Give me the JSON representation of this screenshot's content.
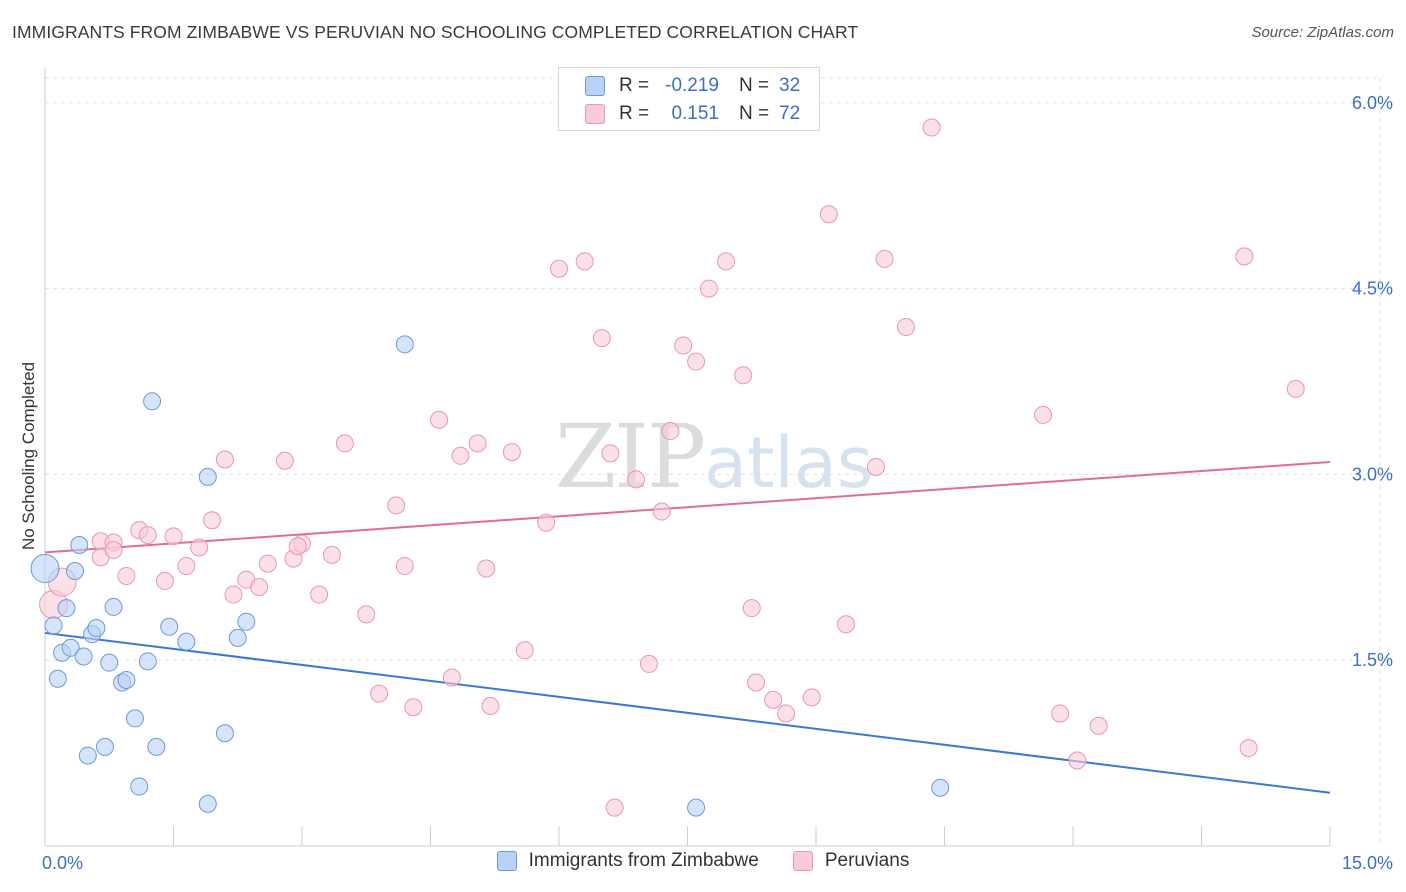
{
  "header": {
    "title": "IMMIGRANTS FROM ZIMBABWE VS PERUVIAN NO SCHOOLING COMPLETED CORRELATION CHART",
    "source": "Source: ZipAtlas.com"
  },
  "watermark": {
    "zip": "ZIP",
    "atlas": "atlas"
  },
  "legend_top": {
    "rows": [
      {
        "r_label": "R =",
        "r_value": "-0.219",
        "n_label": "N =",
        "n_value": "32"
      },
      {
        "r_label": "R =",
        "r_value": "0.151",
        "n_label": "N =",
        "n_value": "72"
      }
    ]
  },
  "legend_bottom": {
    "items": [
      {
        "label": "Immigrants from Zimbabwe"
      },
      {
        "label": "Peruvians"
      }
    ]
  },
  "colors": {
    "zimbabwe_fill": "#b9d2f5",
    "zimbabwe_stroke": "#6b9ad8",
    "zimbabwe_line": "#3b78d6",
    "peruvian_fill": "#f8cbd8",
    "peruvian_stroke": "#e897b0",
    "peruvian_line": "#e26c95",
    "tick_label": "#3b6fc4",
    "grid": "#e0e0e0"
  },
  "chart_data": {
    "type": "scatter",
    "title": "IMMIGRANTS FROM ZIMBABWE VS PERUVIAN NO SCHOOLING COMPLETED CORRELATION CHART",
    "xlabel": "",
    "ylabel": "No Schooling Completed",
    "xlim": [
      0,
      15
    ],
    "ylim": [
      0,
      6.2
    ],
    "x_tick_labels": [
      {
        "value": 0,
        "label": "0.0%"
      },
      {
        "value": 15,
        "label": "15.0%"
      }
    ],
    "y_tick_labels": [
      {
        "value": 1.5,
        "label": "1.5%"
      },
      {
        "value": 3.0,
        "label": "3.0%"
      },
      {
        "value": 4.5,
        "label": "4.5%"
      },
      {
        "value": 6.0,
        "label": "6.0%"
      }
    ],
    "grid": true,
    "legend_position": "top-center",
    "series": [
      {
        "name": "Immigrants from Zimbabwe",
        "trend": {
          "x": [
            0,
            15
          ],
          "y": [
            1.72,
            0.43
          ]
        },
        "points": [
          [
            0.0,
            2.24
          ],
          [
            0.1,
            1.78
          ],
          [
            0.15,
            1.35
          ],
          [
            0.2,
            1.56
          ],
          [
            0.25,
            1.92
          ],
          [
            0.3,
            1.6
          ],
          [
            0.35,
            2.22
          ],
          [
            0.4,
            2.43
          ],
          [
            0.45,
            1.53
          ],
          [
            0.5,
            0.73
          ],
          [
            0.55,
            1.71
          ],
          [
            0.6,
            1.76
          ],
          [
            0.7,
            0.8
          ],
          [
            0.75,
            1.48
          ],
          [
            0.8,
            1.93
          ],
          [
            0.9,
            1.32
          ],
          [
            0.95,
            1.34
          ],
          [
            1.05,
            1.03
          ],
          [
            1.1,
            0.48
          ],
          [
            1.2,
            1.49
          ],
          [
            1.3,
            0.8
          ],
          [
            1.25,
            3.59
          ],
          [
            1.45,
            1.77
          ],
          [
            1.65,
            1.65
          ],
          [
            1.9,
            0.34
          ],
          [
            1.9,
            2.98
          ],
          [
            2.1,
            0.91
          ],
          [
            2.25,
            1.68
          ],
          [
            2.35,
            1.81
          ],
          [
            4.2,
            4.05
          ],
          [
            7.6,
            0.31
          ],
          [
            10.45,
            0.47
          ]
        ]
      },
      {
        "name": "Peruvians",
        "trend": {
          "x": [
            0,
            15
          ],
          "y": [
            2.37,
            3.1
          ]
        },
        "points": [
          [
            0.1,
            1.95
          ],
          [
            0.2,
            2.13
          ],
          [
            0.65,
            2.46
          ],
          [
            0.8,
            2.45
          ],
          [
            0.65,
            2.33
          ],
          [
            0.8,
            2.39
          ],
          [
            0.95,
            2.18
          ],
          [
            1.1,
            2.55
          ],
          [
            1.2,
            2.51
          ],
          [
            1.4,
            2.14
          ],
          [
            1.5,
            2.5
          ],
          [
            1.65,
            2.26
          ],
          [
            1.8,
            2.41
          ],
          [
            1.95,
            2.63
          ],
          [
            2.1,
            3.12
          ],
          [
            2.2,
            2.03
          ],
          [
            2.35,
            2.15
          ],
          [
            2.5,
            2.09
          ],
          [
            2.6,
            2.28
          ],
          [
            2.8,
            3.11
          ],
          [
            2.9,
            2.32
          ],
          [
            3.0,
            2.44
          ],
          [
            3.2,
            2.03
          ],
          [
            3.35,
            2.35
          ],
          [
            3.5,
            3.25
          ],
          [
            3.75,
            1.87
          ],
          [
            3.9,
            1.23
          ],
          [
            4.1,
            2.75
          ],
          [
            4.2,
            2.26
          ],
          [
            4.3,
            1.12
          ],
          [
            4.6,
            3.44
          ],
          [
            4.75,
            1.36
          ],
          [
            4.85,
            3.15
          ],
          [
            5.05,
            3.25
          ],
          [
            5.15,
            2.24
          ],
          [
            5.2,
            1.13
          ],
          [
            5.45,
            3.18
          ],
          [
            5.6,
            1.58
          ],
          [
            5.85,
            2.61
          ],
          [
            6.0,
            4.66
          ],
          [
            6.3,
            4.72
          ],
          [
            6.6,
            3.17
          ],
          [
            6.5,
            4.1
          ],
          [
            6.65,
            0.31
          ],
          [
            6.9,
            2.96
          ],
          [
            7.05,
            1.47
          ],
          [
            7.2,
            2.7
          ],
          [
            7.3,
            3.35
          ],
          [
            7.45,
            4.04
          ],
          [
            7.6,
            3.91
          ],
          [
            7.75,
            4.5
          ],
          [
            7.95,
            4.72
          ],
          [
            8.15,
            3.8
          ],
          [
            8.25,
            1.92
          ],
          [
            8.3,
            1.32
          ],
          [
            8.5,
            1.18
          ],
          [
            8.65,
            1.07
          ],
          [
            8.95,
            1.2
          ],
          [
            9.15,
            5.1
          ],
          [
            9.35,
            1.79
          ],
          [
            9.7,
            3.06
          ],
          [
            9.8,
            4.74
          ],
          [
            10.05,
            4.19
          ],
          [
            10.35,
            5.8
          ],
          [
            11.65,
            3.48
          ],
          [
            11.85,
            1.07
          ],
          [
            12.05,
            0.69
          ],
          [
            12.3,
            0.97
          ],
          [
            14.0,
            4.76
          ],
          [
            14.05,
            0.79
          ],
          [
            14.6,
            3.69
          ],
          [
            2.95,
            2.42
          ]
        ]
      }
    ]
  }
}
